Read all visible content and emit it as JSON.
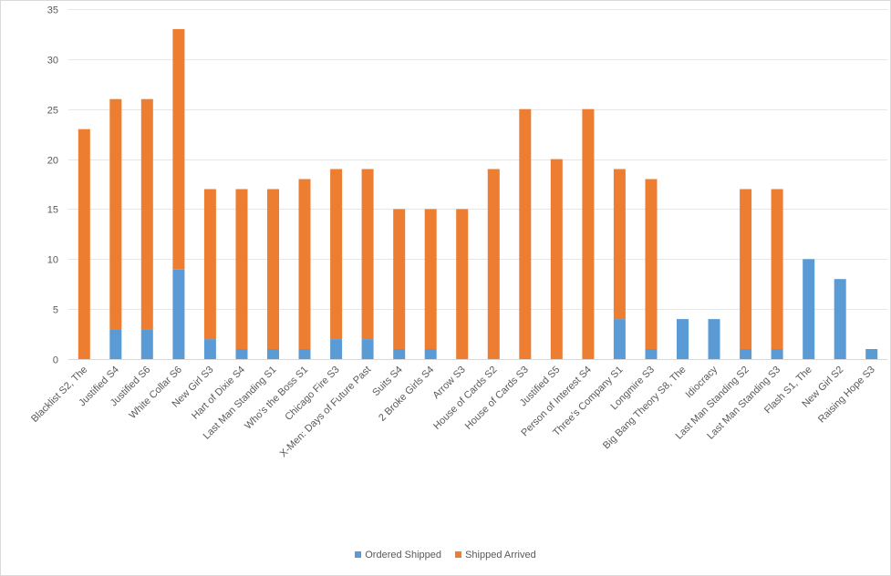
{
  "chart_data": {
    "type": "bar",
    "stacked": true,
    "categories": [
      "Blacklist S2, The",
      "Justified S4",
      "Justified S6",
      "White Collar S6",
      "New Girl S3",
      "Hart of Dixie S4",
      "Last Man Standing S1",
      "Who's the Boss S1",
      "Chicago Fire S3",
      "X-Men: Days of Future Past",
      "Suits S4",
      "2 Broke Girls S4",
      "Arrow S3",
      "House of Cards S2",
      "House of Cards S3",
      "Justified S5",
      "Person of Interest S4",
      "Three's Company S1",
      "Longmire S3",
      "Big Bang Theory S8, The",
      "Idiocracy",
      "Last Man Standing S2",
      "Last Man Standing S3",
      "Flash S1, The",
      "New Girl S2",
      "Raising Hope S3"
    ],
    "series": [
      {
        "name": "Ordered Shipped",
        "color": "#5b9bd5",
        "values": [
          0,
          3,
          3,
          9,
          2,
          1,
          1,
          1,
          2,
          2,
          1,
          1,
          0,
          0,
          0,
          0,
          0,
          4,
          1,
          4,
          4,
          1,
          1,
          10,
          8,
          1
        ]
      },
      {
        "name": "Shipped Arrived",
        "color": "#ed7d31",
        "values": [
          23,
          23,
          23,
          24,
          15,
          16,
          16,
          17,
          17,
          17,
          14,
          14,
          15,
          19,
          25,
          20,
          25,
          15,
          17,
          0,
          0,
          16,
          16,
          0,
          0,
          0
        ]
      }
    ],
    "ylim": [
      0,
      35
    ],
    "yticks": [
      "0",
      "5",
      "10",
      "15",
      "20",
      "25",
      "30",
      "35"
    ],
    "grid": true,
    "legend_position": "bottom"
  }
}
